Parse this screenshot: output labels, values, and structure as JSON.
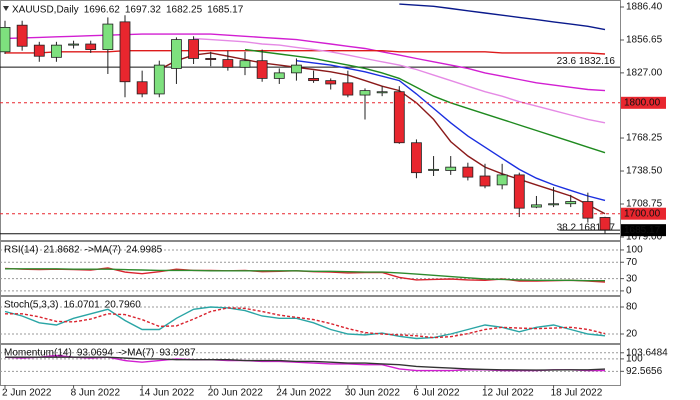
{
  "chart_data": [
    {
      "type": "candlestick",
      "title": "XAUUSD,Daily",
      "categories": [
        "2 Jun 2022",
        null,
        null,
        null,
        "8 Jun 2022",
        null,
        null,
        null,
        "14 Jun 2022",
        null,
        null,
        null,
        "20 Jun 2022",
        null,
        null,
        null,
        "24 Jun 2022",
        null,
        null,
        null,
        "30 Jun 2022",
        null,
        null,
        null,
        "6 Jul 2022",
        null,
        null,
        null,
        "12 Jul 2022",
        null,
        null,
        null,
        "18 Jul 2022",
        null,
        null,
        null
      ],
      "open": [
        1846,
        1870,
        1852,
        1841,
        1852,
        1853,
        1848,
        1873,
        1819,
        1808,
        1831,
        1857,
        1840,
        1839,
        1832,
        1838,
        1822,
        1827,
        1822,
        1820,
        1818,
        1807,
        1809,
        1810,
        1764,
        1739,
        1739,
        1742,
        1734,
        1726,
        1735,
        1706,
        1708,
        1709,
        1711,
        1696.62
      ],
      "high": [
        1874,
        1874,
        1855,
        1855,
        1856,
        1856,
        1877,
        1879,
        1829,
        1838,
        1859,
        1860,
        1846,
        1847,
        1846,
        1848,
        1831,
        1840,
        1829,
        1822,
        1829,
        1813,
        1815,
        1815,
        1767,
        1752,
        1752,
        1746,
        1745,
        1745,
        1737,
        1716,
        1724,
        1717,
        1719,
        1697.32
      ],
      "low": [
        1844,
        1847,
        1837,
        1837,
        1849,
        1845,
        1826,
        1805,
        1805,
        1805,
        1817,
        1835,
        1833,
        1829,
        1825,
        1819,
        1817,
        1820,
        1818,
        1812,
        1805,
        1785,
        1806,
        1763,
        1732,
        1734,
        1735,
        1730,
        1723,
        1722,
        1697,
        1705,
        1706,
        1706,
        1692,
        1682.25
      ],
      "close": [
        1868,
        1851,
        1842,
        1852,
        1853,
        1848,
        1871,
        1819,
        1808,
        1834,
        1857,
        1840,
        1839,
        1832,
        1838,
        1822,
        1827,
        1834,
        1820,
        1817,
        1807,
        1811,
        1810,
        1764,
        1737,
        1740,
        1742,
        1733,
        1725,
        1735,
        1705,
        1708,
        1709,
        1711,
        1696,
        1685.17
      ],
      "up_color": "#7ee07e",
      "down_color": "#e8262e",
      "ylim": [
        1676.3,
        1890.9
      ],
      "yticks": [
        {
          "value": 1886.4,
          "label": "1886.40"
        },
        1856.65,
        {
          "value": 1827,
          "label": "1827.00"
        },
        1768.25,
        {
          "value": 1738.5,
          "label": "1738.50"
        },
        1708.75,
        {
          "value": 1679,
          "label": "1679.00"
        }
      ],
      "series": [
        {
          "color": "#0a1a8c",
          "values": [
            null,
            null,
            null,
            null,
            null,
            null,
            null,
            null,
            null,
            null,
            null,
            null,
            null,
            null,
            null,
            null,
            null,
            null,
            null,
            null,
            null,
            null,
            null,
            1889,
            1888,
            1887,
            1885,
            1883,
            1881,
            1879,
            1877,
            1875,
            1873,
            1871,
            1869,
            1866
          ]
        },
        {
          "color": "#d21fd2",
          "values": [
            1858,
            1858.5,
            1859,
            1859.5,
            1860,
            1860.5,
            1861,
            1861.5,
            1862,
            1862,
            1862,
            1862,
            1862,
            1861,
            1860,
            1859,
            1858,
            1857,
            1855,
            1853,
            1851,
            1849,
            1846,
            1843,
            1840,
            1837,
            1834,
            1831,
            1827,
            1824,
            1821,
            1818,
            1816,
            1814,
            1812,
            1811
          ]
        },
        {
          "color": "#dd1a1a",
          "values": [
            1845,
            1845,
            1845,
            1846,
            1846,
            1846,
            1846,
            1847,
            1847,
            1847,
            1847,
            1847,
            1847,
            1847,
            1847,
            1847,
            1847,
            1847,
            1847,
            1847,
            1847,
            1847,
            1847,
            1846,
            1846,
            1846,
            1846,
            1846,
            1846,
            1845,
            1845,
            1845,
            1845,
            1845,
            1845,
            1844
          ]
        },
        {
          "color": "#e58ae5",
          "values": [
            null,
            null,
            null,
            null,
            null,
            null,
            null,
            null,
            null,
            null,
            null,
            1858,
            1857,
            1856,
            1855,
            1853,
            1852,
            1850,
            1848,
            1846,
            1843,
            1840,
            1837,
            1834,
            1830,
            1825,
            1820,
            1815,
            1810,
            1806,
            1801,
            1797,
            1793,
            1789,
            1785,
            1782
          ]
        },
        {
          "color": "#1f8a1f",
          "values": [
            null,
            null,
            null,
            null,
            null,
            null,
            null,
            null,
            null,
            null,
            null,
            null,
            null,
            null,
            1848,
            1846,
            1844,
            1842,
            1840,
            1837,
            1834,
            1831,
            1827,
            1822,
            1814,
            1806,
            1800,
            1795,
            1790,
            1785,
            1780,
            1775,
            1770,
            1765,
            1760,
            1755
          ]
        },
        {
          "color": "#1b2fe0",
          "values": [
            null,
            null,
            null,
            null,
            null,
            null,
            null,
            null,
            null,
            null,
            null,
            null,
            null,
            null,
            null,
            null,
            null,
            1838,
            1836,
            1834,
            1831,
            1828,
            1824,
            1820,
            1808,
            1795,
            1782,
            1770,
            1760,
            1750,
            1740,
            1732,
            1726,
            1721,
            1716,
            1712
          ]
        },
        {
          "color": "#8b1a1a",
          "values": [
            null,
            null,
            null,
            null,
            null,
            null,
            null,
            null,
            null,
            1830,
            1838,
            1843,
            1845,
            1842,
            1839,
            1836,
            1834,
            1832,
            1830,
            1828,
            1825,
            1820,
            1815,
            1811,
            1800,
            1785,
            1765,
            1752,
            1742,
            1736,
            1731,
            1726,
            1721,
            1716,
            1708,
            1700
          ]
        }
      ],
      "levels": [
        {
          "value": 1800,
          "label": "1800.00",
          "color": "#e8262e"
        },
        {
          "value": 1700,
          "label": "1700.00",
          "color": "#e8262e"
        }
      ],
      "fibonacci": [
        {
          "value": 1832.16,
          "label": "23.6 1832.16"
        },
        {
          "value": 1681.97,
          "label": "38.2 1681.97"
        }
      ]
    },
    {
      "type": "line",
      "ylim": [
        -10,
        117
      ],
      "yticks": [
        100,
        70,
        30,
        0
      ],
      "grid": "dashed",
      "series": [
        {
          "name": "RSI(14)",
          "color": "#d9232e",
          "values": [
            55,
            53,
            52,
            53,
            52,
            51,
            56,
            46,
            42,
            47,
            53,
            50,
            50,
            49,
            50,
            47,
            48,
            49,
            47,
            46,
            44,
            45,
            45,
            33,
            27,
            28,
            29,
            27,
            26,
            29,
            24,
            24,
            25,
            26,
            24,
            21.8682
          ]
        },
        {
          "name": "->MA(7)",
          "color": "#2e8b2e",
          "values": [
            54,
            54,
            54,
            54,
            53,
            53,
            53,
            52,
            51,
            50,
            50,
            50,
            49,
            49,
            49,
            49,
            49,
            49,
            48,
            48,
            47,
            46,
            46,
            44,
            41,
            38,
            35,
            32,
            29,
            28,
            27,
            26,
            26,
            26,
            25,
            24.9985
          ]
        }
      ]
    },
    {
      "type": "line",
      "title": "Stoch(5,3,3)",
      "ylim": [
        0,
        100
      ],
      "yticks": [
        80,
        20
      ],
      "grid": "dashed",
      "series": [
        {
          "color": "#2aa5a5",
          "values": [
            70,
            60,
            45,
            40,
            55,
            65,
            75,
            50,
            30,
            30,
            55,
            75,
            80,
            78,
            72,
            60,
            55,
            55,
            45,
            30,
            20,
            18,
            22,
            15,
            10,
            12,
            20,
            30,
            40,
            35,
            25,
            35,
            40,
            30,
            20,
            16.0701
          ]
        },
        {
          "color": "#d9232e",
          "dash": true,
          "values": [
            65,
            65,
            58,
            48,
            47,
            53,
            65,
            63,
            52,
            37,
            38,
            53,
            70,
            78,
            77,
            70,
            62,
            57,
            52,
            43,
            32,
            23,
            20,
            18,
            16,
            12,
            14,
            21,
            30,
            35,
            33,
            32,
            33,
            35,
            30,
            20.796
          ],
          "value_labels": [
            null,
            null,
            null,
            null,
            null,
            null,
            null,
            null,
            null,
            null,
            null,
            null,
            null,
            null,
            null,
            null,
            null,
            null,
            null,
            null,
            null,
            null,
            null,
            null,
            null,
            null,
            null,
            null,
            null,
            null,
            null,
            null,
            null,
            null,
            null,
            "20.7960"
          ]
        }
      ]
    },
    {
      "type": "line",
      "ylim": [
        84.4,
        107.7
      ],
      "yticks": [
        103.6484,
        100,
        92.5656
      ],
      "grid": "dashed",
      "series": [
        {
          "name": "Momentum(14)",
          "color": "#d21fd2",
          "values": [
            101,
            100.5,
            101,
            102,
            101,
            100.5,
            101,
            99,
            98,
            99,
            100,
            99.5,
            99.5,
            99,
            99,
            98.5,
            98.5,
            98,
            97.5,
            97,
            97,
            96.5,
            96.5,
            94,
            93,
            93,
            93,
            93.5,
            93.5,
            93,
            93,
            93,
            93.5,
            93.5,
            93,
            93.0694
          ]
        },
        {
          "name": "->MA(7)",
          "color": "#333333",
          "values": [
            101,
            101,
            101,
            101,
            101,
            101,
            101,
            100.5,
            100,
            100,
            99.5,
            99.5,
            99.5,
            99.5,
            99,
            99,
            99,
            98.5,
            98.5,
            98,
            97.5,
            97.5,
            97,
            96.5,
            95.5,
            95,
            94.5,
            94,
            93.7,
            93.5,
            93.4,
            93.3,
            93.4,
            93.5,
            93.5,
            93.9287
          ]
        }
      ]
    }
  ]
}
